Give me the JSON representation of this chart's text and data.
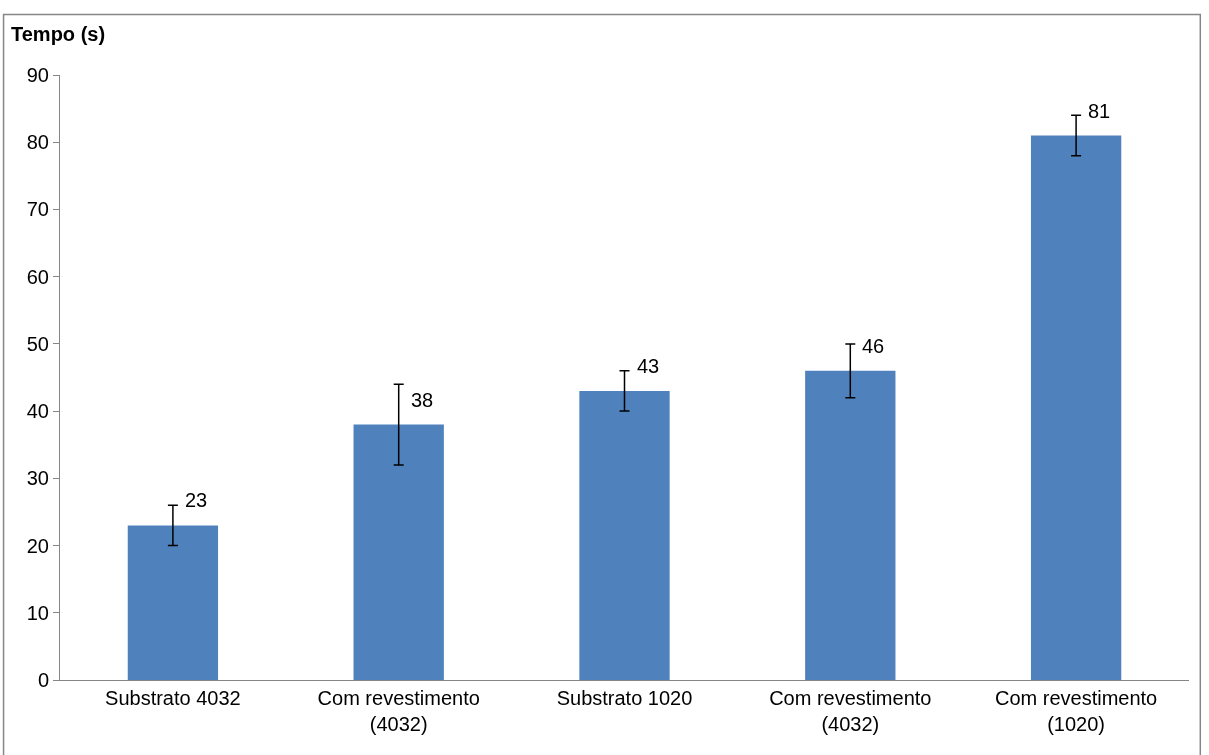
{
  "chart_data": {
    "type": "bar",
    "ylabel": "Tempo (s)",
    "categories": [
      "Substrato 4032",
      "Com revestimento (4032)",
      "Substrato 1020",
      "Com revestimento (4032)",
      "Com revestimento (1020)"
    ],
    "values": [
      23,
      38,
      43,
      46,
      81
    ],
    "errors": [
      3,
      6,
      3,
      4,
      3
    ],
    "color": "#4f81bd",
    "ylim": [
      0,
      90
    ],
    "yticks": [
      0,
      10,
      20,
      30,
      40,
      50,
      60,
      70,
      80,
      90
    ],
    "data_labels": true
  }
}
